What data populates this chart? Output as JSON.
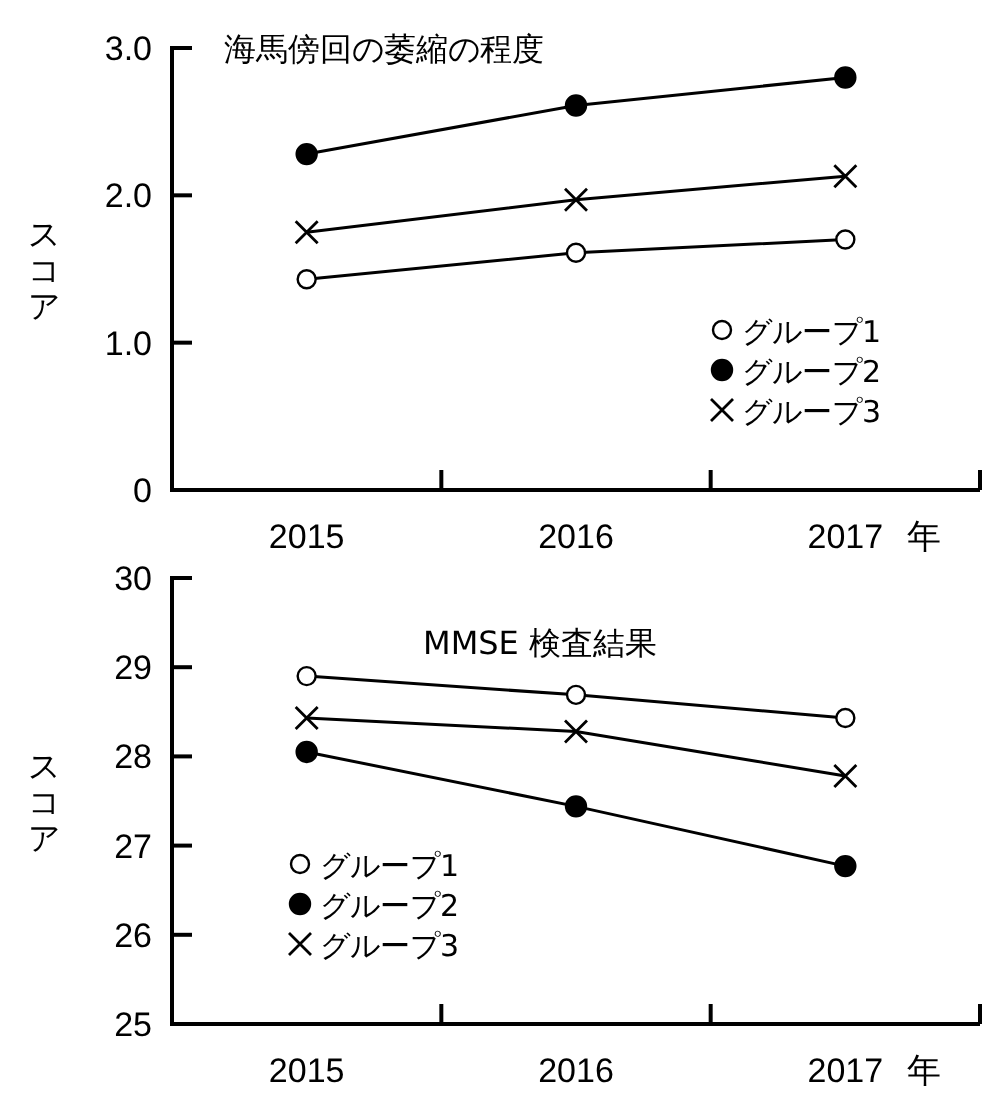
{
  "chart_data": [
    {
      "type": "line",
      "title": "海馬傍回の萎縮の程度",
      "ylabel": "スコア",
      "xlabel": "年",
      "categories": [
        "2015",
        "2016",
        "2017"
      ],
      "ylim": [
        0,
        3
      ],
      "yticks": [
        0,
        {
          "value": 1,
          "label": "1.0"
        },
        {
          "value": 2,
          "label": "2.0"
        },
        {
          "value": 3,
          "label": "3.0"
        }
      ],
      "legend": "bottom right",
      "grid": false,
      "line_style": "solid",
      "series": [
        {
          "name": "グループ1",
          "color": "#000000",
          "marker": "circle-open",
          "values": [
            1.43,
            1.61,
            1.7
          ]
        },
        {
          "name": "グループ2",
          "color": "#000000",
          "marker": "circle",
          "values": [
            2.28,
            2.61,
            2.8
          ]
        },
        {
          "name": "グループ3",
          "color": "#000000",
          "marker": "cross",
          "values": [
            1.75,
            1.97,
            2.13
          ]
        }
      ]
    },
    {
      "type": "line",
      "title": "MMSE 検査結果",
      "ylabel": "スコア",
      "xlabel": "年",
      "categories": [
        "2015",
        "2016",
        "2017"
      ],
      "ylim": [
        25,
        30
      ],
      "yticks": [
        25,
        26,
        27,
        28,
        29,
        30
      ],
      "legend": "bottom left",
      "grid": false,
      "line_style": "solid",
      "series": [
        {
          "name": "グループ1",
          "color": "#000000",
          "marker": "circle-open",
          "values": [
            28.9,
            28.69,
            28.43
          ]
        },
        {
          "name": "グループ2",
          "color": "#000000",
          "marker": "circle",
          "values": [
            28.05,
            27.44,
            26.77
          ]
        },
        {
          "name": "グループ3",
          "color": "#000000",
          "marker": "cross",
          "values": [
            28.43,
            28.28,
            27.78
          ]
        }
      ]
    }
  ]
}
